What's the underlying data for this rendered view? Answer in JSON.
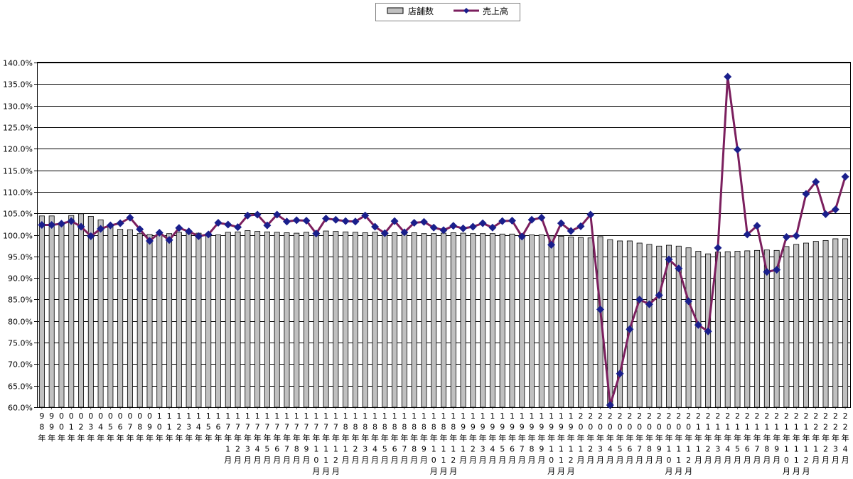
{
  "chart_data": {
    "type": "bar",
    "legend": {
      "placement": "top-center",
      "bar_label": "店舗数",
      "line_label": "売上高"
    },
    "y_axis": {
      "min": 60,
      "max": 140,
      "step": 5,
      "ticks": [
        "60.0%",
        "65.0%",
        "70.0%",
        "75.0%",
        "80.0%",
        "85.0%",
        "90.0%",
        "95.0%",
        "100.0%",
        "105.0%",
        "110.0%",
        "115.0%",
        "120.0%",
        "125.0%",
        "130.0%",
        "135.0%",
        "140.0%"
      ]
    },
    "grid": true,
    "categories": [
      "98年",
      "99年",
      "00年",
      "01年",
      "02年",
      "03年",
      "04年",
      "05年",
      "06年",
      "07年",
      "08年",
      "09年",
      "10年",
      "11年",
      "12年",
      "13年",
      "14年",
      "15年",
      "16年",
      "17年1月",
      "17年2月",
      "17年3月",
      "17年4月",
      "17年5月",
      "17年6月",
      "17年7月",
      "17年8月",
      "17年9月",
      "17年10月",
      "17年11月",
      "17年12月",
      "18年1月",
      "18年2月",
      "18年3月",
      "18年4月",
      "18年5月",
      "18年6月",
      "18年7月",
      "18年8月",
      "18年9月",
      "18年10月",
      "18年11月",
      "18年12月",
      "19年1月",
      "19年2月",
      "19年3月",
      "19年4月",
      "19年5月",
      "19年6月",
      "19年7月",
      "19年8月",
      "19年9月",
      "19年10月",
      "19年11月",
      "19年12月",
      "20年1月",
      "20年2月",
      "20年3月",
      "20年4月",
      "20年5月",
      "20年6月",
      "20年7月",
      "20年8月",
      "20年9月",
      "20年10月",
      "20年11月",
      "20年12月",
      "21年1月",
      "21年2月",
      "21年3月",
      "21年4月",
      "21年5月",
      "21年6月",
      "21年7月",
      "21年8月",
      "21年9月",
      "21年10月",
      "21年11月",
      "21年12月",
      "22年1月",
      "22年2月",
      "22年3月",
      "22年4月"
    ],
    "category_labels": [
      [
        "9",
        "8",
        "年"
      ],
      [
        "9",
        "9",
        "年"
      ],
      [
        "0",
        "0",
        "年"
      ],
      [
        "0",
        "1",
        "年"
      ],
      [
        "0",
        "2",
        "年"
      ],
      [
        "0",
        "3",
        "年"
      ],
      [
        "0",
        "4",
        "年"
      ],
      [
        "0",
        "5",
        "年"
      ],
      [
        "0",
        "6",
        "年"
      ],
      [
        "0",
        "7",
        "年"
      ],
      [
        "0",
        "8",
        "年"
      ],
      [
        "0",
        "9",
        "年"
      ],
      [
        "1",
        "0",
        "年"
      ],
      [
        "1",
        "1",
        "年"
      ],
      [
        "1",
        "2",
        "年"
      ],
      [
        "1",
        "3",
        "年"
      ],
      [
        "1",
        "4",
        "年"
      ],
      [
        "1",
        "5",
        "年"
      ],
      [
        "1",
        "6",
        "年"
      ],
      [
        "1",
        "7",
        "年",
        "1",
        "月"
      ],
      [
        "1",
        "7",
        "年",
        "2",
        "月"
      ],
      [
        "1",
        "7",
        "年",
        "3",
        "月"
      ],
      [
        "1",
        "7",
        "年",
        "4",
        "月"
      ],
      [
        "1",
        "7",
        "年",
        "5",
        "月"
      ],
      [
        "1",
        "7",
        "年",
        "6",
        "月"
      ],
      [
        "1",
        "7",
        "年",
        "7",
        "月"
      ],
      [
        "1",
        "7",
        "年",
        "8",
        "月"
      ],
      [
        "1",
        "7",
        "年",
        "9",
        "月"
      ],
      [
        "1",
        "7",
        "年",
        "1",
        "0",
        "月"
      ],
      [
        "1",
        "7",
        "年",
        "1",
        "1",
        "月"
      ],
      [
        "1",
        "7",
        "年",
        "1",
        "2",
        "月"
      ],
      [
        "1",
        "8",
        "年",
        "1",
        "月"
      ],
      [
        "1",
        "8",
        "年",
        "2",
        "月"
      ],
      [
        "1",
        "8",
        "年",
        "3",
        "月"
      ],
      [
        "1",
        "8",
        "年",
        "4",
        "月"
      ],
      [
        "1",
        "8",
        "年",
        "5",
        "月"
      ],
      [
        "1",
        "8",
        "年",
        "6",
        "月"
      ],
      [
        "1",
        "8",
        "年",
        "7",
        "月"
      ],
      [
        "1",
        "8",
        "年",
        "8",
        "月"
      ],
      [
        "1",
        "8",
        "年",
        "9",
        "月"
      ],
      [
        "1",
        "8",
        "年",
        "1",
        "0",
        "月"
      ],
      [
        "1",
        "8",
        "年",
        "1",
        "1",
        "月"
      ],
      [
        "1",
        "8",
        "年",
        "1",
        "2",
        "月"
      ],
      [
        "1",
        "9",
        "年",
        "1",
        "月"
      ],
      [
        "1",
        "9",
        "年",
        "2",
        "月"
      ],
      [
        "1",
        "9",
        "年",
        "3",
        "月"
      ],
      [
        "1",
        "9",
        "年",
        "4",
        "月"
      ],
      [
        "1",
        "9",
        "年",
        "5",
        "月"
      ],
      [
        "1",
        "9",
        "年",
        "6",
        "月"
      ],
      [
        "1",
        "9",
        "年",
        "7",
        "月"
      ],
      [
        "1",
        "9",
        "年",
        "8",
        "月"
      ],
      [
        "1",
        "9",
        "年",
        "9",
        "月"
      ],
      [
        "1",
        "9",
        "年",
        "1",
        "0",
        "月"
      ],
      [
        "1",
        "9",
        "年",
        "1",
        "1",
        "月"
      ],
      [
        "1",
        "9",
        "年",
        "1",
        "2",
        "月"
      ],
      [
        "2",
        "0",
        "年",
        "1",
        "月"
      ],
      [
        "2",
        "0",
        "年",
        "2",
        "月"
      ],
      [
        "2",
        "0",
        "年",
        "3",
        "月"
      ],
      [
        "2",
        "0",
        "年",
        "4",
        "月"
      ],
      [
        "2",
        "0",
        "年",
        "5",
        "月"
      ],
      [
        "2",
        "0",
        "年",
        "6",
        "月"
      ],
      [
        "2",
        "0",
        "年",
        "7",
        "月"
      ],
      [
        "2",
        "0",
        "年",
        "8",
        "月"
      ],
      [
        "2",
        "0",
        "年",
        "9",
        "月"
      ],
      [
        "2",
        "0",
        "年",
        "1",
        "0",
        "月"
      ],
      [
        "2",
        "0",
        "年",
        "1",
        "1",
        "月"
      ],
      [
        "2",
        "0",
        "年",
        "1",
        "2",
        "月"
      ],
      [
        "2",
        "1",
        "年",
        "1",
        "月"
      ],
      [
        "2",
        "1",
        "年",
        "2",
        "月"
      ],
      [
        "2",
        "1",
        "年",
        "3",
        "月"
      ],
      [
        "2",
        "1",
        "年",
        "4",
        "月"
      ],
      [
        "2",
        "1",
        "年",
        "5",
        "月"
      ],
      [
        "2",
        "1",
        "年",
        "6",
        "月"
      ],
      [
        "2",
        "1",
        "年",
        "7",
        "月"
      ],
      [
        "2",
        "1",
        "年",
        "8",
        "月"
      ],
      [
        "2",
        "1",
        "年",
        "9",
        "月"
      ],
      [
        "2",
        "1",
        "年",
        "1",
        "0",
        "月"
      ],
      [
        "2",
        "1",
        "年",
        "1",
        "1",
        "月"
      ],
      [
        "2",
        "1",
        "年",
        "1",
        "2",
        "月"
      ],
      [
        "2",
        "2",
        "年",
        "1",
        "月"
      ],
      [
        "2",
        "2",
        "年",
        "2",
        "月"
      ],
      [
        "2",
        "2",
        "年",
        "3",
        "月"
      ],
      [
        "2",
        "2",
        "年",
        "4",
        "月"
      ]
    ],
    "series": [
      {
        "name": "店舗数",
        "type": "bar",
        "color": "#c0c0c0",
        "values": [
          104.4,
          104.4,
          102.8,
          104.5,
          104.9,
          104.3,
          103.5,
          102.0,
          101.3,
          101.2,
          100.3,
          100.1,
          100.0,
          100.3,
          100.6,
          100.5,
          100.4,
          100.2,
          100.0,
          100.6,
          100.7,
          101.0,
          100.8,
          100.7,
          100.6,
          100.5,
          100.4,
          100.6,
          100.8,
          100.9,
          100.8,
          100.7,
          100.6,
          100.5,
          100.6,
          100.5,
          100.5,
          100.6,
          100.5,
          100.3,
          100.3,
          100.4,
          100.5,
          100.4,
          100.3,
          100.3,
          100.3,
          100.2,
          100.2,
          100.1,
          100.0,
          100.0,
          99.8,
          99.7,
          99.5,
          99.4,
          99.3,
          99.6,
          98.9,
          98.6,
          98.6,
          98.1,
          97.8,
          97.4,
          97.6,
          97.4,
          97.0,
          96.2,
          95.6,
          96.0,
          96.1,
          96.2,
          96.3,
          96.4,
          96.5,
          96.4,
          97.3,
          97.8,
          98.1,
          98.5,
          98.7,
          99.1,
          99.1
        ]
      },
      {
        "name": "売上高",
        "type": "line",
        "color": "#7b1f5e",
        "marker_color": "#1a1f8c",
        "values": [
          102.3,
          102.3,
          102.6,
          103.2,
          101.9,
          99.7,
          101.4,
          102.2,
          102.7,
          104.0,
          101.3,
          98.6,
          100.5,
          98.8,
          101.6,
          100.8,
          99.7,
          100.1,
          102.8,
          102.4,
          101.8,
          104.5,
          104.7,
          102.2,
          104.7,
          103.1,
          103.4,
          103.3,
          100.3,
          103.8,
          103.5,
          103.2,
          103.1,
          104.5,
          101.9,
          100.4,
          103.2,
          100.6,
          102.8,
          103.0,
          101.7,
          101.1,
          102.1,
          101.5,
          101.9,
          102.7,
          101.7,
          103.2,
          103.3,
          99.6,
          103.5,
          104.0,
          97.7,
          102.7,
          100.9,
          102.0,
          104.7,
          82.7,
          60.5,
          67.8,
          78.1,
          85.0,
          83.9,
          86.0,
          94.3,
          92.2,
          84.6,
          79.1,
          77.6,
          97.0,
          136.7,
          119.8,
          100.1,
          102.1,
          91.4,
          91.9,
          99.5,
          99.8,
          109.5,
          112.3,
          104.8,
          105.9,
          113.5
        ]
      }
    ]
  }
}
